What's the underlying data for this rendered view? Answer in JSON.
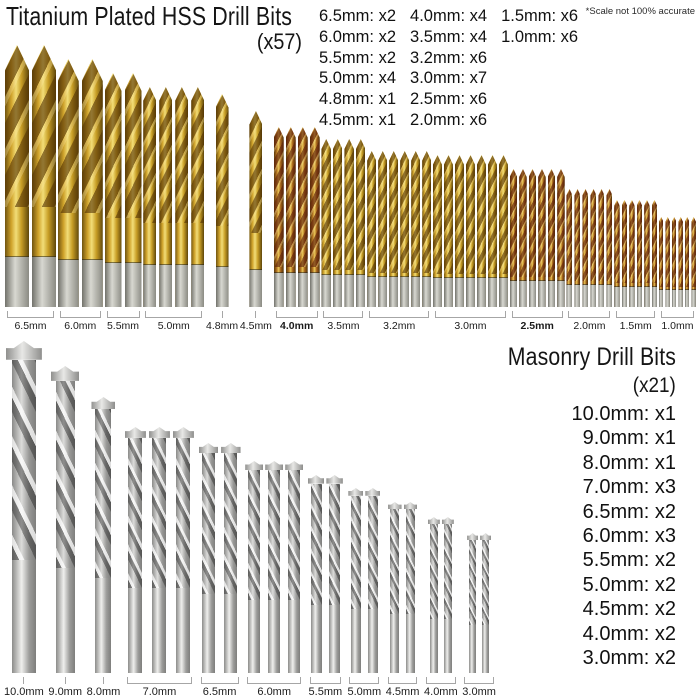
{
  "hss": {
    "title": "Titanium Plated HSS Drill Bits",
    "count_label": "(x57)",
    "scale_note": "*Scale not 100% accurate",
    "quantity_columns": [
      [
        "6.5mm: x2",
        "6.0mm: x2",
        "5.5mm: x2",
        "5.0mm: x4",
        "4.8mm: x1",
        "4.5mm: x1"
      ],
      [
        "4.0mm: x4",
        "3.5mm: x4",
        "3.2mm: x6",
        "3.0mm: x7",
        "2.5mm: x6",
        "2.0mm: x6"
      ],
      [
        "1.5mm: x6",
        "1.0mm: x6"
      ]
    ],
    "groups": [
      {
        "size": "6.5mm",
        "count": 2,
        "bit_width": 24,
        "bit_height": 262,
        "tint": "gold"
      },
      {
        "size": "6.0mm",
        "count": 2,
        "bit_width": 21,
        "bit_height": 248,
        "tint": "gold"
      },
      {
        "size": "5.5mm",
        "count": 2,
        "bit_width": 17,
        "bit_height": 234,
        "tint": "gold"
      },
      {
        "size": "5.0mm",
        "count": 4,
        "bit_width": 13,
        "bit_height": 220,
        "tint": "gold"
      },
      {
        "size": "4.8mm",
        "count": 1,
        "bit_width": 13,
        "bit_height": 213,
        "tint": "gold"
      },
      {
        "size": "4.5mm",
        "count": 1,
        "bit_width": 13,
        "bit_height": 196,
        "tint": "gold"
      },
      {
        "size": "4.0mm",
        "count": 4,
        "bit_width": 10,
        "bit_height": 180,
        "tint": "bronze",
        "emphasis": true
      },
      {
        "size": "3.5mm",
        "count": 4,
        "bit_width": 9.5,
        "bit_height": 168,
        "tint": "gold"
      },
      {
        "size": "3.2mm",
        "count": 6,
        "bit_width": 9,
        "bit_height": 156,
        "tint": "gold"
      },
      {
        "size": "3.0mm",
        "count": 7,
        "bit_width": 9,
        "bit_height": 152,
        "tint": "gold"
      },
      {
        "size": "2.5mm",
        "count": 6,
        "bit_width": 7.5,
        "bit_height": 138,
        "tint": "bronze",
        "emphasis": true
      },
      {
        "size": "2.0mm",
        "count": 6,
        "bit_width": 6,
        "bit_height": 118,
        "tint": "bronze"
      },
      {
        "size": "1.5mm",
        "count": 6,
        "bit_width": 5.5,
        "bit_height": 107,
        "tint": "bronze"
      },
      {
        "size": "1.0mm",
        "count": 6,
        "bit_width": 4.5,
        "bit_height": 90,
        "tint": "bronze"
      }
    ]
  },
  "masonry": {
    "title": "Masonry Drill Bits",
    "count_label": "(x21)",
    "quantities": [
      "10.0mm: x1",
      "9.0mm: x1",
      "8.0mm: x1",
      "7.0mm: x3",
      "6.5mm: x2",
      "6.0mm: x3",
      "5.5mm: x2",
      "5.0mm: x2",
      "4.5mm: x2",
      "4.0mm: x2",
      "3.0mm: x2"
    ],
    "groups": [
      {
        "size": "10.0mm",
        "count": 1,
        "bit_width": 24,
        "bit_height": 332
      },
      {
        "size": "9.0mm",
        "count": 1,
        "bit_width": 19,
        "bit_height": 307
      },
      {
        "size": "8.0mm",
        "count": 1,
        "bit_width": 16,
        "bit_height": 276
      },
      {
        "size": "7.0mm",
        "count": 3,
        "bit_width": 14,
        "bit_height": 246
      },
      {
        "size": "6.5mm",
        "count": 2,
        "bit_width": 13,
        "bit_height": 230
      },
      {
        "size": "6.0mm",
        "count": 3,
        "bit_width": 12,
        "bit_height": 212
      },
      {
        "size": "5.5mm",
        "count": 2,
        "bit_width": 11,
        "bit_height": 198
      },
      {
        "size": "5.0mm",
        "count": 2,
        "bit_width": 10,
        "bit_height": 185
      },
      {
        "size": "4.5mm",
        "count": 2,
        "bit_width": 9,
        "bit_height": 171
      },
      {
        "size": "4.0mm",
        "count": 2,
        "bit_width": 8,
        "bit_height": 156
      },
      {
        "size": "3.0mm",
        "count": 2,
        "bit_width": 7,
        "bit_height": 140
      }
    ]
  },
  "colors": {
    "titanium_gold": "#d9a62e",
    "bronze_tint": "#a15e16",
    "silver": "#c9c9c2",
    "text": "#161616",
    "bracket": "#a6a6a6",
    "background": "#ffffff"
  }
}
